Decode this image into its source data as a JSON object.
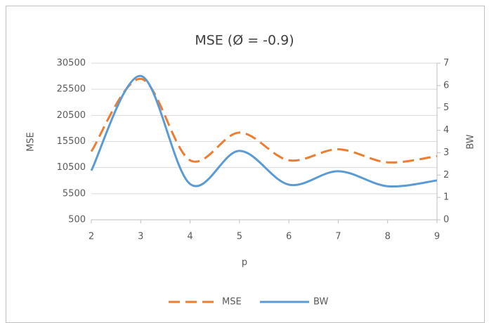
{
  "chart_data": {
    "type": "line",
    "title": "MSE (Ø = -0.9)",
    "x_label": "p",
    "y_label": "MSE",
    "y2_label": "BW",
    "x": [
      2,
      3,
      4,
      5,
      6,
      7,
      8,
      9
    ],
    "xlim": [
      2,
      9
    ],
    "xticks": [
      2,
      3,
      4,
      5,
      6,
      7,
      8,
      9
    ],
    "ylim": [
      500,
      30500
    ],
    "yticks": [
      500,
      5500,
      10500,
      15500,
      20500,
      25500,
      30500
    ],
    "y2lim": [
      0,
      7
    ],
    "y2ticks": [
      0,
      1,
      2,
      3,
      4,
      5,
      6,
      7
    ],
    "smooth": true,
    "legend": "bottom",
    "series": [
      {
        "name": "MSE",
        "color": "#ed7d31",
        "dash": true,
        "values": [
          13600,
          27500,
          11900,
          17200,
          11900,
          14000,
          11500,
          12700
        ]
      },
      {
        "name": "BW",
        "color": "#5b9bd5",
        "dash": false,
        "axis": "y2",
        "values": [
          2.2,
          6.43,
          1.6,
          3.08,
          1.57,
          2.17,
          1.5,
          1.76
        ]
      }
    ]
  }
}
